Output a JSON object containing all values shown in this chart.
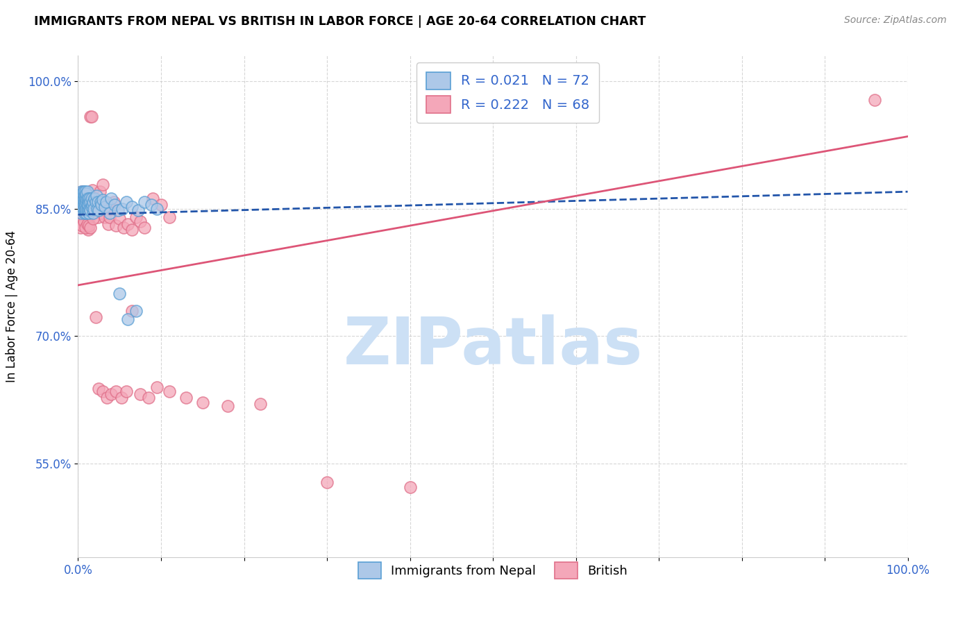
{
  "title": "IMMIGRANTS FROM NEPAL VS BRITISH IN LABOR FORCE | AGE 20-64 CORRELATION CHART",
  "source": "Source: ZipAtlas.com",
  "ylabel": "In Labor Force | Age 20-64",
  "xlim": [
    0.0,
    1.0
  ],
  "ylim": [
    0.44,
    1.03
  ],
  "xticks": [
    0.0,
    0.1,
    0.2,
    0.3,
    0.4,
    0.5,
    0.6,
    0.7,
    0.8,
    0.9,
    1.0
  ],
  "xticklabels": [
    "0.0%",
    "",
    "",
    "",
    "",
    "",
    "",
    "",
    "",
    "",
    "100.0%"
  ],
  "ytick_positions": [
    0.55,
    0.7,
    0.85,
    1.0
  ],
  "ytick_labels": [
    "55.0%",
    "70.0%",
    "85.0%",
    "100.0%"
  ],
  "nepal_R": 0.021,
  "nepal_N": 72,
  "british_R": 0.222,
  "british_N": 68,
  "nepal_color": "#adc8e8",
  "nepal_edge": "#5a9fd4",
  "british_color": "#f4a7b9",
  "british_edge": "#e0708a",
  "nepal_line_color": "#2255aa",
  "british_line_color": "#dd5577",
  "watermark_text": "ZIPatlas",
  "watermark_color": "#cce0f5",
  "nepal_x": [
    0.002,
    0.003,
    0.003,
    0.004,
    0.004,
    0.005,
    0.005,
    0.005,
    0.006,
    0.006,
    0.006,
    0.007,
    0.007,
    0.007,
    0.007,
    0.008,
    0.008,
    0.008,
    0.008,
    0.009,
    0.009,
    0.009,
    0.009,
    0.01,
    0.01,
    0.01,
    0.01,
    0.01,
    0.011,
    0.011,
    0.011,
    0.011,
    0.012,
    0.012,
    0.012,
    0.013,
    0.013,
    0.014,
    0.014,
    0.015,
    0.015,
    0.016,
    0.016,
    0.017,
    0.018,
    0.018,
    0.019,
    0.02,
    0.021,
    0.022,
    0.023,
    0.024,
    0.025,
    0.027,
    0.028,
    0.03,
    0.032,
    0.034,
    0.038,
    0.04,
    0.044,
    0.048,
    0.053,
    0.058,
    0.065,
    0.072,
    0.08,
    0.088,
    0.095,
    0.05,
    0.06,
    0.07
  ],
  "nepal_y": [
    0.85,
    0.858,
    0.862,
    0.845,
    0.87,
    0.852,
    0.86,
    0.868,
    0.855,
    0.862,
    0.87,
    0.848,
    0.855,
    0.862,
    0.87,
    0.845,
    0.852,
    0.858,
    0.865,
    0.848,
    0.855,
    0.862,
    0.87,
    0.845,
    0.85,
    0.858,
    0.862,
    0.868,
    0.85,
    0.855,
    0.862,
    0.87,
    0.848,
    0.855,
    0.862,
    0.845,
    0.858,
    0.85,
    0.862,
    0.848,
    0.858,
    0.852,
    0.862,
    0.855,
    0.845,
    0.858,
    0.85,
    0.862,
    0.858,
    0.865,
    0.85,
    0.858,
    0.848,
    0.858,
    0.855,
    0.86,
    0.852,
    0.858,
    0.845,
    0.862,
    0.855,
    0.848,
    0.85,
    0.858,
    0.852,
    0.848,
    0.858,
    0.855,
    0.85,
    0.75,
    0.72,
    0.73
  ],
  "british_x": [
    0.003,
    0.004,
    0.005,
    0.006,
    0.007,
    0.008,
    0.009,
    0.01,
    0.011,
    0.012,
    0.013,
    0.014,
    0.015,
    0.016,
    0.017,
    0.018,
    0.019,
    0.02,
    0.022,
    0.024,
    0.026,
    0.028,
    0.03,
    0.032,
    0.034,
    0.036,
    0.038,
    0.04,
    0.043,
    0.046,
    0.05,
    0.055,
    0.06,
    0.065,
    0.07,
    0.075,
    0.08,
    0.09,
    0.1,
    0.11,
    0.003,
    0.005,
    0.007,
    0.009,
    0.011,
    0.013,
    0.015,
    0.018,
    0.021,
    0.025,
    0.03,
    0.035,
    0.04,
    0.046,
    0.052,
    0.058,
    0.065,
    0.075,
    0.085,
    0.095,
    0.11,
    0.13,
    0.15,
    0.18,
    0.22,
    0.3,
    0.4,
    0.96
  ],
  "british_y": [
    0.84,
    0.858,
    0.87,
    0.85,
    0.862,
    0.84,
    0.848,
    0.832,
    0.828,
    0.825,
    0.838,
    0.84,
    0.958,
    0.958,
    0.872,
    0.855,
    0.862,
    0.858,
    0.852,
    0.84,
    0.87,
    0.845,
    0.878,
    0.84,
    0.855,
    0.832,
    0.84,
    0.85,
    0.858,
    0.83,
    0.838,
    0.828,
    0.832,
    0.825,
    0.84,
    0.835,
    0.828,
    0.862,
    0.855,
    0.84,
    0.828,
    0.83,
    0.835,
    0.828,
    0.832,
    0.83,
    0.828,
    0.838,
    0.722,
    0.638,
    0.635,
    0.628,
    0.632,
    0.635,
    0.628,
    0.635,
    0.73,
    0.632,
    0.628,
    0.64,
    0.635,
    0.628,
    0.622,
    0.618,
    0.62,
    0.528,
    0.522,
    0.978
  ],
  "nepal_line_x0": 0.0,
  "nepal_line_y0": 0.843,
  "nepal_line_x1": 1.0,
  "nepal_line_y1": 0.87,
  "british_line_x0": 0.0,
  "british_line_y0": 0.76,
  "british_line_x1": 1.0,
  "british_line_y1": 0.935
}
